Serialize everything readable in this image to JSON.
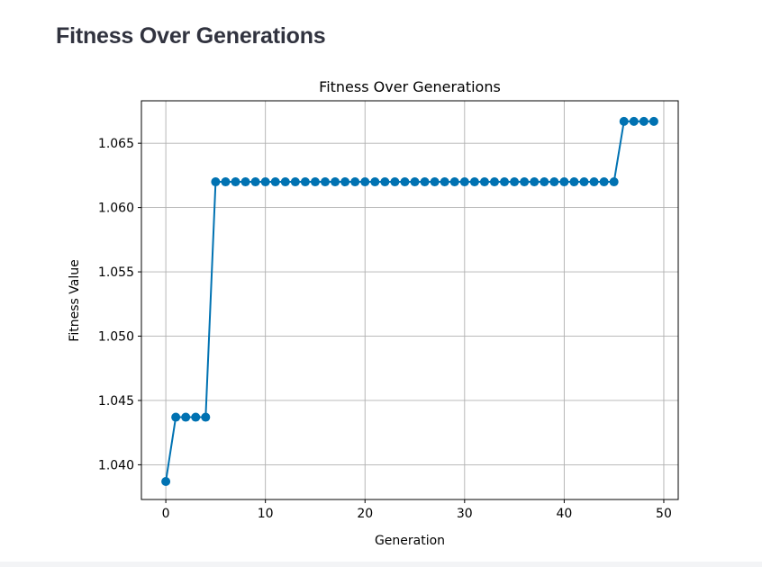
{
  "page": {
    "heading": "Fitness Over Generations"
  },
  "chart_data": {
    "type": "line",
    "title": "Fitness Over Generations",
    "xlabel": "Generation",
    "ylabel": "Fitness Value",
    "xlim": [
      -2.45,
      51.45
    ],
    "ylim": [
      1.0373,
      1.0683
    ],
    "x_ticks": [
      0,
      10,
      20,
      30,
      40,
      50
    ],
    "x_tick_labels": [
      "0",
      "10",
      "20",
      "30",
      "40",
      "50"
    ],
    "y_ticks": [
      1.04,
      1.045,
      1.05,
      1.055,
      1.06,
      1.065
    ],
    "y_tick_labels": [
      "1.040",
      "1.045",
      "1.050",
      "1.055",
      "1.060",
      "1.065"
    ],
    "grid": true,
    "legend": "none",
    "marker": "circle",
    "series_color": "#0072b2",
    "x": [
      0,
      1,
      2,
      3,
      4,
      5,
      6,
      7,
      8,
      9,
      10,
      11,
      12,
      13,
      14,
      15,
      16,
      17,
      18,
      19,
      20,
      21,
      22,
      23,
      24,
      25,
      26,
      27,
      28,
      29,
      30,
      31,
      32,
      33,
      34,
      35,
      36,
      37,
      38,
      39,
      40,
      41,
      42,
      43,
      44,
      45,
      46,
      47,
      48,
      49
    ],
    "y": [
      1.0387,
      1.0437,
      1.0437,
      1.0437,
      1.0437,
      1.062,
      1.062,
      1.062,
      1.062,
      1.062,
      1.062,
      1.062,
      1.062,
      1.062,
      1.062,
      1.062,
      1.062,
      1.062,
      1.062,
      1.062,
      1.062,
      1.062,
      1.062,
      1.062,
      1.062,
      1.062,
      1.062,
      1.062,
      1.062,
      1.062,
      1.062,
      1.062,
      1.062,
      1.062,
      1.062,
      1.062,
      1.062,
      1.062,
      1.062,
      1.062,
      1.062,
      1.062,
      1.062,
      1.062,
      1.062,
      1.062,
      1.0667,
      1.0667,
      1.0667,
      1.0667
    ]
  }
}
